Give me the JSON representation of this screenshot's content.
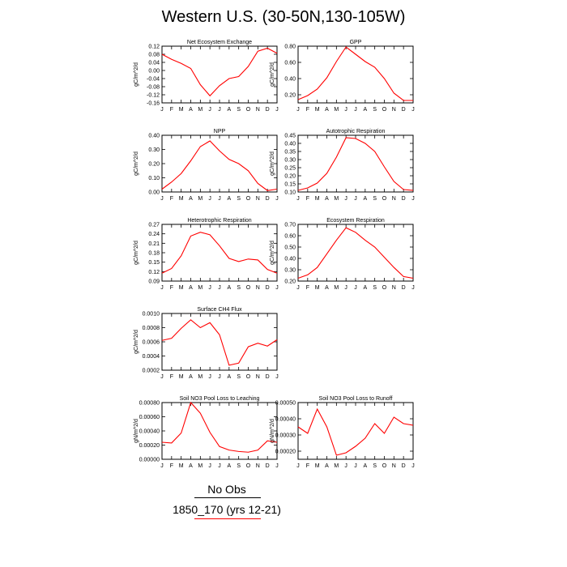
{
  "title": "Western U.S. (30-50N,130-105W)",
  "legend": {
    "obs_label": "No Obs",
    "model_label": "1850_170 (yrs 12-21)",
    "model_color": "#ff0000",
    "obs_color": "#000000"
  },
  "months": [
    "J",
    "F",
    "M",
    "A",
    "M",
    "J",
    "J",
    "A",
    "S",
    "O",
    "N",
    "D",
    "J"
  ],
  "chart_data": [
    {
      "type": "line",
      "title": "Net Ecosystem Exchange",
      "ylabel": "gC/m^2/d",
      "ylim": [
        -0.16,
        0.12
      ],
      "yticks": [
        "-0.16",
        "-0.12",
        "-0.08",
        "-0.04",
        "0.00",
        "0.04",
        "0.08",
        "0.12"
      ],
      "values": [
        0.08,
        0.055,
        0.035,
        0.01,
        -0.07,
        -0.125,
        -0.075,
        -0.04,
        -0.03,
        0.02,
        0.095,
        0.11,
        0.085
      ]
    },
    {
      "type": "line",
      "title": "GPP",
      "ylabel": "gC/m^2/d",
      "ylim": [
        0.1,
        0.8
      ],
      "yticks": [
        "0.20",
        "0.40",
        "0.60",
        "0.80"
      ],
      "values": [
        0.14,
        0.19,
        0.27,
        0.41,
        0.61,
        0.79,
        0.7,
        0.61,
        0.54,
        0.4,
        0.22,
        0.13,
        0.13
      ]
    },
    {
      "type": "line",
      "title": "NPP",
      "ylabel": "gC/m^2/d",
      "ylim": [
        0.0,
        0.4
      ],
      "yticks": [
        "0.00",
        "0.10",
        "0.20",
        "0.30",
        "0.40"
      ],
      "values": [
        0.02,
        0.07,
        0.13,
        0.22,
        0.32,
        0.36,
        0.29,
        0.23,
        0.2,
        0.15,
        0.06,
        0.01,
        0.02
      ]
    },
    {
      "type": "line",
      "title": "Autotrophic Respiration",
      "ylabel": "gC/m^2/d",
      "ylim": [
        0.1,
        0.45
      ],
      "yticks": [
        "0.10",
        "0.15",
        "0.20",
        "0.25",
        "0.30",
        "0.35",
        "0.40",
        "0.45"
      ],
      "values": [
        0.11,
        0.125,
        0.155,
        0.215,
        0.315,
        0.435,
        0.43,
        0.4,
        0.35,
        0.255,
        0.165,
        0.115,
        0.11
      ]
    },
    {
      "type": "line",
      "title": "Heterotrophic Respiration",
      "ylabel": "gC/m^2/d",
      "ylim": [
        0.09,
        0.27
      ],
      "yticks": [
        "0.09",
        "0.12",
        "0.15",
        "0.18",
        "0.21",
        "0.24",
        "0.27"
      ],
      "values": [
        0.115,
        0.13,
        0.17,
        0.233,
        0.245,
        0.237,
        0.202,
        0.162,
        0.152,
        0.16,
        0.157,
        0.127,
        0.115
      ]
    },
    {
      "type": "line",
      "title": "Ecosystem Respiration",
      "ylabel": "gC/m^2/d",
      "ylim": [
        0.2,
        0.7
      ],
      "yticks": [
        "0.20",
        "0.30",
        "0.40",
        "0.50",
        "0.60",
        "0.70"
      ],
      "values": [
        0.225,
        0.255,
        0.32,
        0.44,
        0.56,
        0.67,
        0.63,
        0.56,
        0.5,
        0.41,
        0.32,
        0.24,
        0.225
      ]
    },
    {
      "type": "line",
      "title": "Surface CH4 Flux",
      "ylabel": "gC/m^2/d",
      "ylim": [
        0.0002,
        0.001
      ],
      "yticks": [
        "0.0002",
        "0.0004",
        "0.0006",
        "0.0008",
        "0.0010"
      ],
      "values": [
        0.00062,
        0.00065,
        0.00079,
        0.00091,
        0.0008,
        0.00087,
        0.0007,
        0.00027,
        0.0003,
        0.00053,
        0.00058,
        0.00054,
        0.00063
      ]
    },
    {
      "type": "line",
      "title": "Soil NO3 Pool Loss to Leaching",
      "ylabel": "gN/m^2/d",
      "ylim": [
        0.0,
        0.0008
      ],
      "yticks": [
        "0.00000",
        "0.00020",
        "0.00040",
        "0.00060",
        "0.00080"
      ],
      "values": [
        0.00024,
        0.00023,
        0.00037,
        0.0008,
        0.00065,
        0.00038,
        0.00018,
        0.00013,
        0.00011,
        0.0001,
        0.00013,
        0.00026,
        0.00024
      ]
    },
    {
      "type": "line",
      "title": "Soil NO3 Pool Loss to Runoff",
      "ylabel": "gN/m^2/d",
      "ylim": [
        0.00015,
        0.0005
      ],
      "yticks": [
        "0.00020",
        "0.00030",
        "0.00040",
        "0.00050"
      ],
      "values": [
        0.00035,
        0.00031,
        0.00046,
        0.00035,
        0.000175,
        0.00019,
        0.00023,
        0.00028,
        0.00037,
        0.00031,
        0.00041,
        0.00037,
        0.00036
      ]
    }
  ]
}
